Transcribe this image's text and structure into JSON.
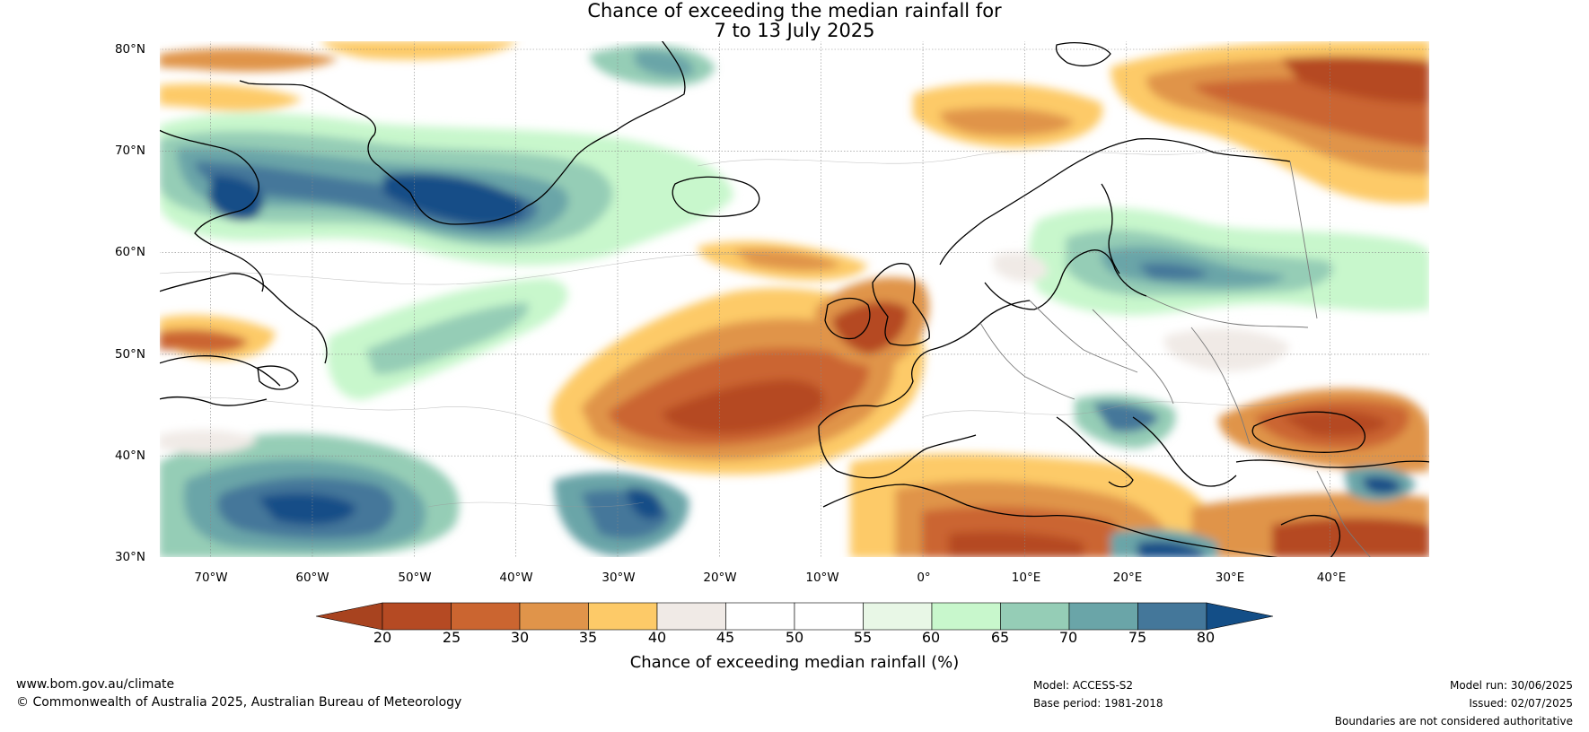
{
  "map": {
    "title_line1": "Chance of exceeding the median rainfall for",
    "title_line2": "7 to 13 July 2025",
    "lat_labels": [
      "80°N",
      "70°N",
      "60°N",
      "50°N",
      "40°N",
      "30°N"
    ],
    "lon_labels": [
      "70°W",
      "60°W",
      "50°W",
      "40°W",
      "30°W",
      "20°W",
      "10°W",
      "0°",
      "10°E",
      "20°E",
      "30°E",
      "40°E"
    ]
  },
  "colorbar": {
    "ticks": [
      "20",
      "25",
      "30",
      "35",
      "40",
      "45",
      "50",
      "55",
      "60",
      "65",
      "70",
      "75",
      "80"
    ],
    "label": "Chance of exceeding median rainfall (%)",
    "colors": {
      "under": "#a8431f",
      "bins": [
        "#b54a23",
        "#cb6530",
        "#e0944a",
        "#fdca68",
        "#f0eae6",
        "#ffffff",
        "#ffffff",
        "#e8f7e6",
        "#c8f7cc",
        "#95cdb6",
        "#6aa5a8",
        "#44779a"
      ],
      "over": "#134e87"
    }
  },
  "footer": {
    "website": "www.bom.gov.au/climate",
    "copyright": "© Commonwealth of Australia 2025, Australian Bureau of Meteorology",
    "model": "Model: ACCESS-S2",
    "base_period": "Base period: 1981-2018",
    "model_run": "Model run: 30/06/2025",
    "issued": "Issued: 02/07/2025",
    "boundaries": "Boundaries are not considered authoritative"
  }
}
